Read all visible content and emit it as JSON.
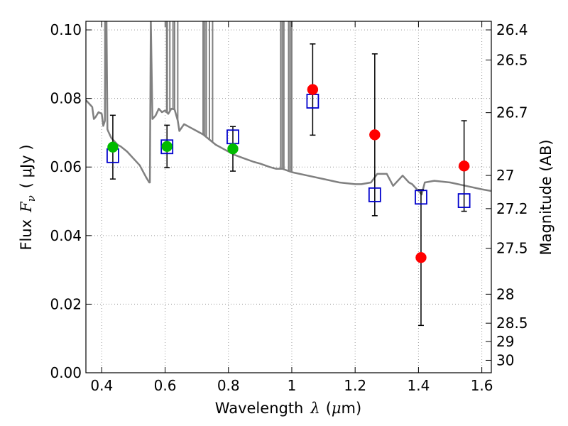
{
  "chart_data": {
    "type": "scatter",
    "xlabel": "Wavelength",
    "xlabel_symbol": "λ",
    "xlabel_unit_open": "(",
    "xlabel_unit_mu": "μ",
    "xlabel_unit_rest": "m)",
    "ylabel": "Flux",
    "ylabel_symbol": "F",
    "ylabel_subscript": "ν",
    "ylabel_unit": "( μJy )",
    "y2label": "Magnitude (AB)",
    "xlim": [
      0.35,
      1.63
    ],
    "ylim": [
      0.0,
      0.1025
    ],
    "grid": true,
    "x_ticks": [
      "0.4",
      "0.6",
      "0.8",
      "1",
      "1.2",
      "1.4",
      "1.6"
    ],
    "x_tick_values": [
      0.4,
      0.6,
      0.8,
      1.0,
      1.2,
      1.4,
      1.6
    ],
    "y_ticks": [
      "0.00",
      "0.02",
      "0.04",
      "0.06",
      "0.08",
      "0.10"
    ],
    "y_tick_values": [
      0.0,
      0.02,
      0.04,
      0.06,
      0.08,
      0.1
    ],
    "y2_ticks": [
      "26.4",
      "26.5",
      "26.7",
      "27",
      "27.2",
      "27.5",
      "28",
      "28.5",
      "29",
      "30"
    ],
    "y2_tick_values": [
      26.4,
      26.5,
      26.7,
      27,
      27.2,
      27.5,
      28,
      28.5,
      29,
      30
    ],
    "colors": {
      "model": "#808080",
      "observed_green": "#00bb00",
      "observed_red": "#ff0000",
      "model_box": "#0000cc",
      "errorbar": "#000000",
      "grid": "#999999"
    },
    "model_spectrum": {
      "x": [
        0.35,
        0.36,
        0.37,
        0.375,
        0.38,
        0.39,
        0.4,
        0.405,
        0.41,
        0.412,
        0.415,
        0.418,
        0.42,
        0.43,
        0.44,
        0.45,
        0.46,
        0.48,
        0.5,
        0.52,
        0.54,
        0.55,
        0.552,
        0.555,
        0.56,
        0.57,
        0.58,
        0.59,
        0.6,
        0.61,
        0.62,
        0.63,
        0.64,
        0.645,
        0.66,
        0.68,
        0.7,
        0.72,
        0.74,
        0.76,
        0.78,
        0.8,
        0.82,
        0.85,
        0.88,
        0.9,
        0.93,
        0.95,
        0.97,
        1.0,
        1.05,
        1.1,
        1.15,
        1.2,
        1.22,
        1.25,
        1.27,
        1.3,
        1.32,
        1.35,
        1.37,
        1.38,
        1.4,
        1.41,
        1.42,
        1.45,
        1.5,
        1.55,
        1.6,
        1.63
      ],
      "y": [
        0.0795,
        0.0785,
        0.0775,
        0.074,
        0.0745,
        0.076,
        0.0755,
        0.072,
        0.0735,
        0.103,
        0.103,
        0.071,
        0.0705,
        0.0685,
        0.0675,
        0.0665,
        0.066,
        0.0645,
        0.0625,
        0.0605,
        0.057,
        0.0555,
        0.0555,
        0.103,
        0.074,
        0.075,
        0.077,
        0.076,
        0.0765,
        0.0755,
        0.077,
        0.0768,
        0.0735,
        0.0705,
        0.0725,
        0.0715,
        0.0705,
        0.0695,
        0.068,
        0.0665,
        0.0655,
        0.0645,
        0.0635,
        0.0625,
        0.0615,
        0.061,
        0.06,
        0.0595,
        0.0595,
        0.0585,
        0.0575,
        0.0565,
        0.0555,
        0.055,
        0.055,
        0.0555,
        0.058,
        0.058,
        0.0545,
        0.0575,
        0.0555,
        0.055,
        0.053,
        0.052,
        0.0555,
        0.056,
        0.0555,
        0.0545,
        0.0535,
        0.053
      ],
      "spike_x": [
        0.41,
        0.555,
        0.605,
        0.607,
        0.615,
        0.625,
        0.63,
        0.64,
        0.72,
        0.725,
        0.73,
        0.74,
        0.75,
        0.965,
        0.97,
        0.975,
        0.99,
        0.995,
        1.0
      ]
    },
    "observed": [
      {
        "x": 0.435,
        "y": 0.0658,
        "err": 0.0093,
        "color": "green"
      },
      {
        "x": 0.606,
        "y": 0.066,
        "err": 0.0062,
        "color": "green"
      },
      {
        "x": 0.814,
        "y": 0.0653,
        "err": 0.0065,
        "color": "green"
      },
      {
        "x": 1.066,
        "y": 0.0826,
        "err": 0.0133,
        "color": "red"
      },
      {
        "x": 1.262,
        "y": 0.0694,
        "err": 0.0236,
        "color": "red"
      },
      {
        "x": 1.408,
        "y": 0.0336,
        "err": 0.0198,
        "color": "red"
      },
      {
        "x": 1.544,
        "y": 0.0603,
        "err": 0.0132,
        "color": "red"
      }
    ],
    "model_photometry": [
      {
        "x": 0.435,
        "y": 0.0633
      },
      {
        "x": 0.606,
        "y": 0.0659
      },
      {
        "x": 0.814,
        "y": 0.0688
      },
      {
        "x": 1.066,
        "y": 0.0792
      },
      {
        "x": 1.262,
        "y": 0.0519
      },
      {
        "x": 1.408,
        "y": 0.0512
      },
      {
        "x": 1.544,
        "y": 0.0502
      }
    ]
  }
}
